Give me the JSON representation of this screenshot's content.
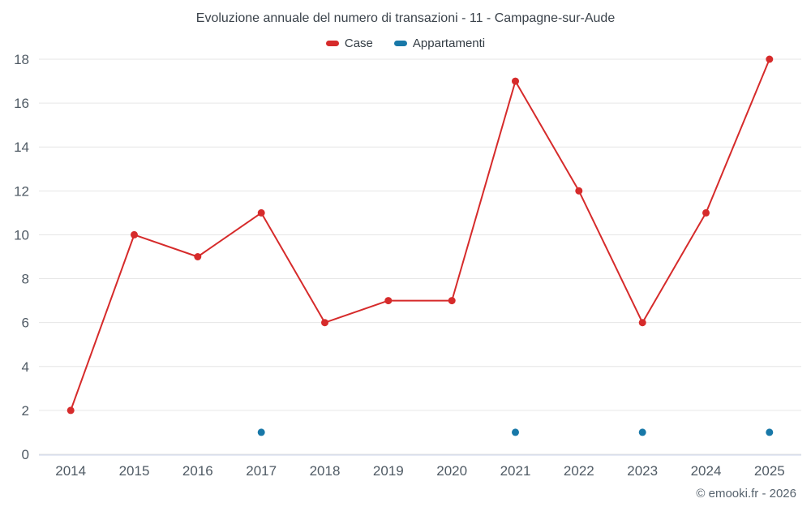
{
  "chart_data": {
    "type": "line",
    "title": "Evoluzione annuale del numero di transazioni - 11 - Campagne-sur-Aude",
    "x": [
      "2014",
      "2015",
      "2016",
      "2017",
      "2018",
      "2019",
      "2020",
      "2021",
      "2022",
      "2023",
      "2024",
      "2025"
    ],
    "series": [
      {
        "name": "Case",
        "color": "#d62b2b",
        "values": [
          2,
          10,
          9,
          11,
          6,
          7,
          7,
          17,
          12,
          6,
          11,
          18
        ]
      },
      {
        "name": "Appartamenti",
        "color": "#1878a8",
        "values": [
          null,
          null,
          null,
          1,
          null,
          null,
          null,
          1,
          null,
          1,
          null,
          1
        ]
      }
    ],
    "ylim": [
      0,
      18
    ],
    "y_ticks": [
      0,
      2,
      4,
      6,
      8,
      10,
      12,
      14,
      16,
      18
    ],
    "grid": "horizontal",
    "legend_position": "top"
  },
  "footer": {
    "credit": "© emooki.fr - 2026"
  },
  "colors": {
    "title_text": "#3b434b",
    "axis_text": "#4f5a64",
    "grid_line": "#e6e6e6",
    "axis_line": "#ccd6eb",
    "background": "#ffffff"
  }
}
